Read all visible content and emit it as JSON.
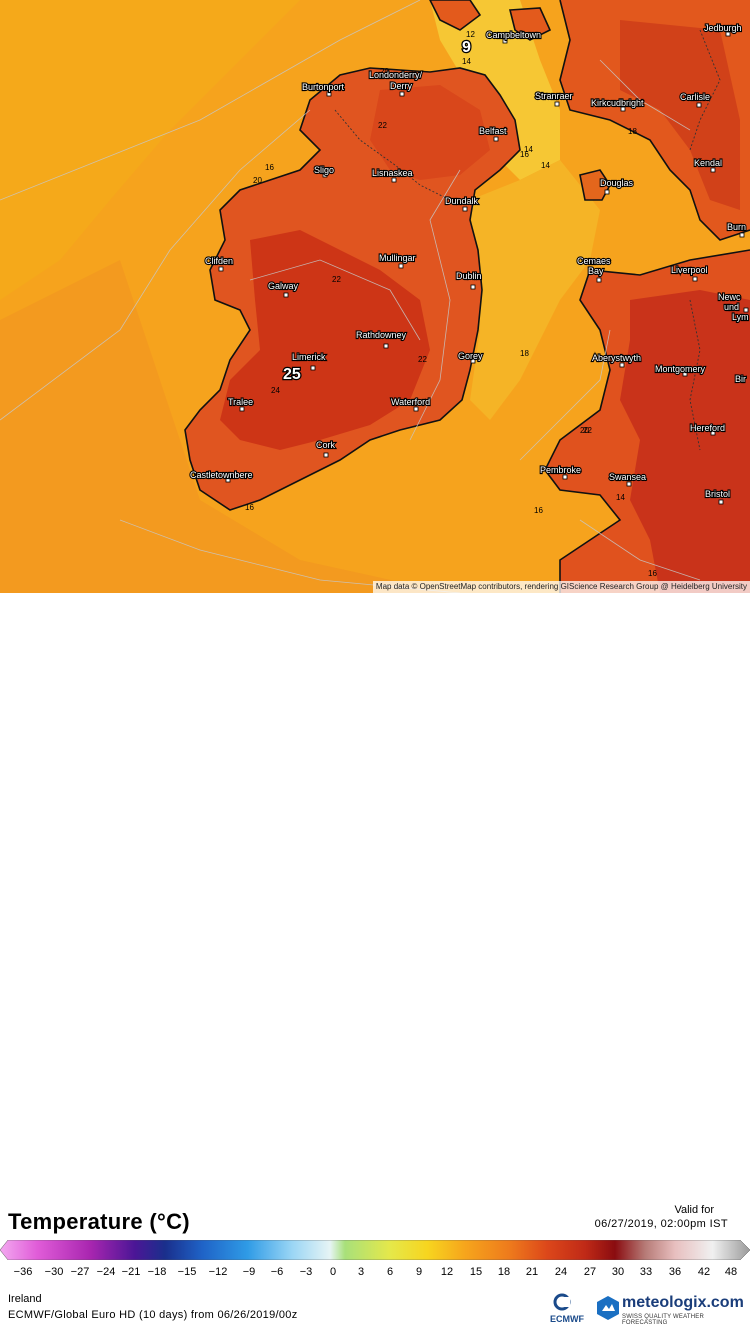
{
  "legend": {
    "title": "Temperature (°C)",
    "valid_label": "Valid for",
    "valid_time": "06/27/2019, 02:00pm IST",
    "region": "Ireland",
    "model": "ECMWF/Global Euro HD (10 days) from 06/26/2019/00z",
    "ticks": [
      "-36",
      "-30",
      "-27",
      "-24",
      "-21",
      "-18",
      "-15",
      "-12",
      "-9",
      "-6",
      "-3",
      "0",
      "3",
      "6",
      "9",
      "12",
      "15",
      "18",
      "21",
      "24",
      "27",
      "30",
      "33",
      "36",
      "42",
      "48"
    ]
  },
  "attribution": "Map data © OpenStreetMap contributors, rendering GIScience Research Group @ Heidelberg University",
  "branding": {
    "ecmwf": "ECMWF",
    "meteologix": "meteologix.com",
    "tagline": "SWISS QUALITY WEATHER FORECASTING"
  },
  "map": {
    "cities": [
      {
        "name": "Campbeltown"
      },
      {
        "name": "Jedburgh"
      },
      {
        "name": "Londonderry/"
      },
      {
        "name": "Derry"
      },
      {
        "name": "Burtonport"
      },
      {
        "name": "Stranraer"
      },
      {
        "name": "Kirkcudbright"
      },
      {
        "name": "Carlisle"
      },
      {
        "name": "Belfast"
      },
      {
        "name": "Sligo"
      },
      {
        "name": "Lisnaskea"
      },
      {
        "name": "Kendal"
      },
      {
        "name": "Douglas"
      },
      {
        "name": "Dundalk"
      },
      {
        "name": "Burn"
      },
      {
        "name": "Clifden"
      },
      {
        "name": "Mullingar"
      },
      {
        "name": "Cemaes"
      },
      {
        "name": "Bay"
      },
      {
        "name": "Dublin"
      },
      {
        "name": "Liverpool"
      },
      {
        "name": "Galway"
      },
      {
        "name": "Newc"
      },
      {
        "name": "und"
      },
      {
        "name": "Lym"
      },
      {
        "name": "Rathdowney"
      },
      {
        "name": "Gorey"
      },
      {
        "name": "Limerick"
      },
      {
        "name": "Montgomery"
      },
      {
        "name": "Bir"
      },
      {
        "name": "Aberystwyth"
      },
      {
        "name": "Tralee"
      },
      {
        "name": "Waterford"
      },
      {
        "name": "Hereford"
      },
      {
        "name": "Cork"
      },
      {
        "name": "Castletownbere"
      },
      {
        "name": "Pembroke"
      },
      {
        "name": "Swansea"
      },
      {
        "name": "Bristol"
      }
    ],
    "extremes": [
      {
        "value": "9"
      },
      {
        "value": "25"
      }
    ],
    "contour_labels": [
      "12",
      "14",
      "20",
      "22",
      "16",
      "20",
      "22",
      "18",
      "14",
      "16",
      "22",
      "24",
      "20",
      "16",
      "18",
      "16",
      "14",
      "16",
      "14",
      "22"
    ]
  },
  "colors": {
    "sea": "#f7a21a",
    "land_warm": "#e2541b",
    "land_hot": "#cc3417",
    "cool_sea": "#f6c63a"
  }
}
